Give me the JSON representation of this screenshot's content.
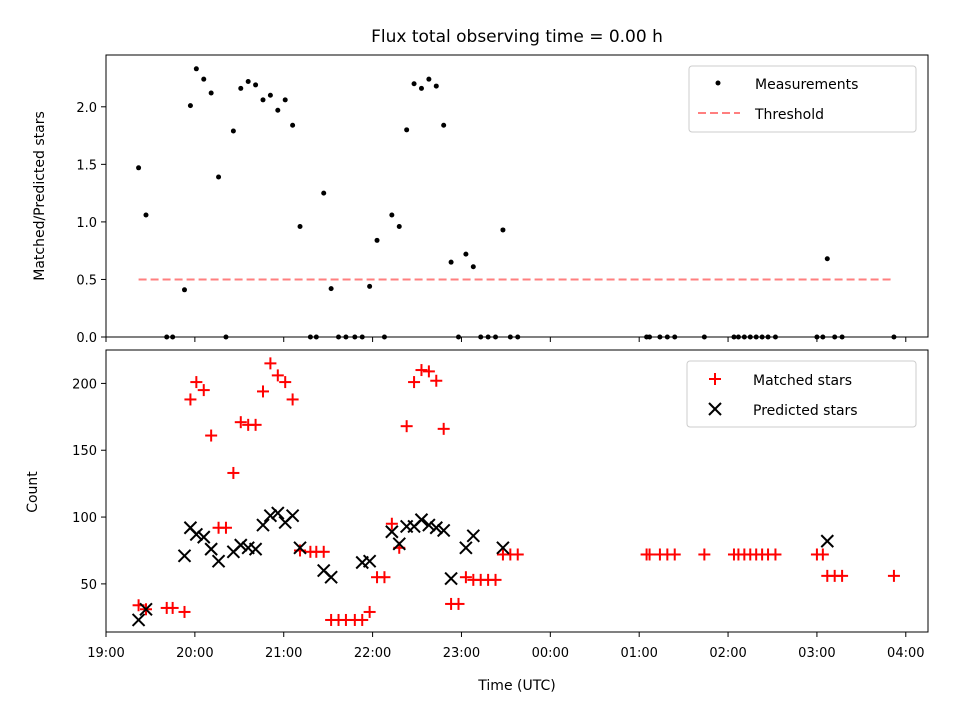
{
  "chart_data": [
    {
      "type": "scatter",
      "title": "Flux total observing time = 0.00 h",
      "xlabel": "",
      "ylabel": "Matched/Predicted stars",
      "ylim": [
        0.0,
        2.45
      ],
      "yticks": [
        0.0,
        0.5,
        1.0,
        1.5,
        2.0
      ],
      "ytick_labels": [
        "0.0",
        "0.5",
        "1.0",
        "1.5",
        "2.0"
      ],
      "legend_position": "top-right",
      "grid": false,
      "series": [
        {
          "name": "Measurements",
          "color": "#000000",
          "marker": "dot",
          "points": [
            [
              "19:22",
              1.47
            ],
            [
              "19:27",
              1.06
            ],
            [
              "19:41",
              0.0
            ],
            [
              "19:45",
              0.0
            ],
            [
              "19:53",
              0.41
            ],
            [
              "19:57",
              2.01
            ],
            [
              "20:01",
              2.33
            ],
            [
              "20:06",
              2.24
            ],
            [
              "20:11",
              2.12
            ],
            [
              "20:16",
              1.39
            ],
            [
              "20:21",
              0.0
            ],
            [
              "20:26",
              1.79
            ],
            [
              "20:31",
              2.16
            ],
            [
              "20:36",
              2.22
            ],
            [
              "20:41",
              2.19
            ],
            [
              "20:46",
              2.06
            ],
            [
              "20:51",
              2.1
            ],
            [
              "20:56",
              1.97
            ],
            [
              "21:01",
              2.06
            ],
            [
              "21:06",
              1.84
            ],
            [
              "21:11",
              0.96
            ],
            [
              "21:18",
              0.0
            ],
            [
              "21:22",
              0.0
            ],
            [
              "21:27",
              1.25
            ],
            [
              "21:32",
              0.42
            ],
            [
              "21:37",
              0.0
            ],
            [
              "21:42",
              0.0
            ],
            [
              "21:48",
              0.0
            ],
            [
              "21:53",
              0.0
            ],
            [
              "21:58",
              0.44
            ],
            [
              "22:03",
              0.84
            ],
            [
              "22:08",
              0.0
            ],
            [
              "22:13",
              1.06
            ],
            [
              "22:18",
              0.96
            ],
            [
              "22:23",
              1.8
            ],
            [
              "22:28",
              2.2
            ],
            [
              "22:33",
              2.16
            ],
            [
              "22:38",
              2.24
            ],
            [
              "22:43",
              2.18
            ],
            [
              "22:48",
              1.84
            ],
            [
              "22:53",
              0.65
            ],
            [
              "22:58",
              0.0
            ],
            [
              "23:03",
              0.72
            ],
            [
              "23:08",
              0.61
            ],
            [
              "23:13",
              0.0
            ],
            [
              "23:18",
              0.0
            ],
            [
              "23:23",
              0.0
            ],
            [
              "23:28",
              0.93
            ],
            [
              "23:33",
              0.0
            ],
            [
              "23:38",
              0.0
            ],
            [
              "01:05",
              0.0
            ],
            [
              "01:07",
              0.0
            ],
            [
              "01:14",
              0.0
            ],
            [
              "01:19",
              0.0
            ],
            [
              "01:24",
              0.0
            ],
            [
              "01:44",
              0.0
            ],
            [
              "02:04",
              0.0
            ],
            [
              "02:07",
              0.0
            ],
            [
              "02:11",
              0.0
            ],
            [
              "02:15",
              0.0
            ],
            [
              "02:19",
              0.0
            ],
            [
              "02:23",
              0.0
            ],
            [
              "02:27",
              0.0
            ],
            [
              "02:32",
              0.0
            ],
            [
              "03:00",
              0.0
            ],
            [
              "03:04",
              0.0
            ],
            [
              "03:07",
              0.68
            ],
            [
              "03:12",
              0.0
            ],
            [
              "03:17",
              0.0
            ],
            [
              "03:52",
              0.0
            ]
          ]
        },
        {
          "name": "Threshold",
          "color": "#ff7f7f",
          "style": "dashed",
          "points": [
            [
              "19:22",
              0.5
            ],
            [
              "03:52",
              0.5
            ]
          ]
        }
      ]
    },
    {
      "type": "scatter",
      "title": "",
      "xlabel": "Time (UTC)",
      "ylabel": "Count",
      "ylim": [
        14,
        225
      ],
      "yticks": [
        50,
        100,
        150,
        200
      ],
      "ytick_labels": [
        "50",
        "100",
        "150",
        "200"
      ],
      "legend_position": "top-right",
      "grid": false,
      "x_range": [
        "19:00",
        "04:15"
      ],
      "xticks": [
        "19:00",
        "20:00",
        "21:00",
        "22:00",
        "23:00",
        "00:00",
        "01:00",
        "02:00",
        "03:00",
        "04:00"
      ],
      "series": [
        {
          "name": "Matched stars",
          "color": "#ff0000",
          "marker": "plus",
          "points": [
            [
              "19:22",
              34
            ],
            [
              "19:27",
              31
            ],
            [
              "19:41",
              32
            ],
            [
              "19:45",
              32
            ],
            [
              "19:53",
              29
            ],
            [
              "19:57",
              188
            ],
            [
              "20:01",
              201
            ],
            [
              "20:06",
              195
            ],
            [
              "20:11",
              161
            ],
            [
              "20:16",
              92
            ],
            [
              "20:21",
              92
            ],
            [
              "20:26",
              133
            ],
            [
              "20:31",
              171
            ],
            [
              "20:36",
              169
            ],
            [
              "20:41",
              169
            ],
            [
              "20:46",
              194
            ],
            [
              "20:51",
              215
            ],
            [
              "20:56",
              206
            ],
            [
              "21:01",
              201
            ],
            [
              "21:06",
              188
            ],
            [
              "21:11",
              75
            ],
            [
              "21:18",
              74
            ],
            [
              "21:22",
              74
            ],
            [
              "21:27",
              74
            ],
            [
              "21:32",
              23
            ],
            [
              "21:37",
              23
            ],
            [
              "21:42",
              23
            ],
            [
              "21:48",
              23
            ],
            [
              "21:53",
              23
            ],
            [
              "21:58",
              29
            ],
            [
              "22:03",
              55
            ],
            [
              "22:08",
              55
            ],
            [
              "22:13",
              95
            ],
            [
              "22:18",
              77
            ],
            [
              "22:23",
              168
            ],
            [
              "22:28",
              201
            ],
            [
              "22:33",
              210
            ],
            [
              "22:38",
              209
            ],
            [
              "22:43",
              202
            ],
            [
              "22:48",
              166
            ],
            [
              "22:53",
              35
            ],
            [
              "22:58",
              35
            ],
            [
              "23:03",
              55
            ],
            [
              "23:08",
              53
            ],
            [
              "23:13",
              53
            ],
            [
              "23:18",
              53
            ],
            [
              "23:23",
              53
            ],
            [
              "23:28",
              72
            ],
            [
              "23:33",
              72
            ],
            [
              "23:38",
              72
            ],
            [
              "01:05",
              72
            ],
            [
              "01:07",
              72
            ],
            [
              "01:14",
              72
            ],
            [
              "01:19",
              72
            ],
            [
              "01:24",
              72
            ],
            [
              "01:44",
              72
            ],
            [
              "02:04",
              72
            ],
            [
              "02:07",
              72
            ],
            [
              "02:11",
              72
            ],
            [
              "02:15",
              72
            ],
            [
              "02:19",
              72
            ],
            [
              "02:23",
              72
            ],
            [
              "02:27",
              72
            ],
            [
              "02:32",
              72
            ],
            [
              "03:00",
              72
            ],
            [
              "03:04",
              72
            ],
            [
              "03:07",
              56
            ],
            [
              "03:12",
              56
            ],
            [
              "03:17",
              56
            ],
            [
              "03:52",
              56
            ]
          ]
        },
        {
          "name": "Predicted stars",
          "color": "#000000",
          "marker": "x",
          "points": [
            [
              "19:22",
              23
            ],
            [
              "19:27",
              31
            ],
            [
              "19:53",
              71
            ],
            [
              "19:57",
              92
            ],
            [
              "20:01",
              87
            ],
            [
              "20:06",
              85
            ],
            [
              "20:11",
              76
            ],
            [
              "20:16",
              67
            ],
            [
              "20:26",
              74
            ],
            [
              "20:31",
              79
            ],
            [
              "20:36",
              77
            ],
            [
              "20:41",
              76
            ],
            [
              "20:46",
              94
            ],
            [
              "20:51",
              101
            ],
            [
              "20:56",
              103
            ],
            [
              "21:01",
              96
            ],
            [
              "21:06",
              101
            ],
            [
              "21:11",
              77
            ],
            [
              "21:27",
              60
            ],
            [
              "21:32",
              55
            ],
            [
              "21:53",
              66
            ],
            [
              "21:58",
              67
            ],
            [
              "22:13",
              89
            ],
            [
              "22:18",
              80
            ],
            [
              "22:23",
              93
            ],
            [
              "22:28",
              93
            ],
            [
              "22:33",
              98
            ],
            [
              "22:38",
              94
            ],
            [
              "22:43",
              92
            ],
            [
              "22:48",
              90
            ],
            [
              "22:53",
              54
            ],
            [
              "23:03",
              77
            ],
            [
              "23:08",
              86
            ],
            [
              "23:28",
              77
            ],
            [
              "03:07",
              82
            ]
          ]
        }
      ]
    }
  ]
}
